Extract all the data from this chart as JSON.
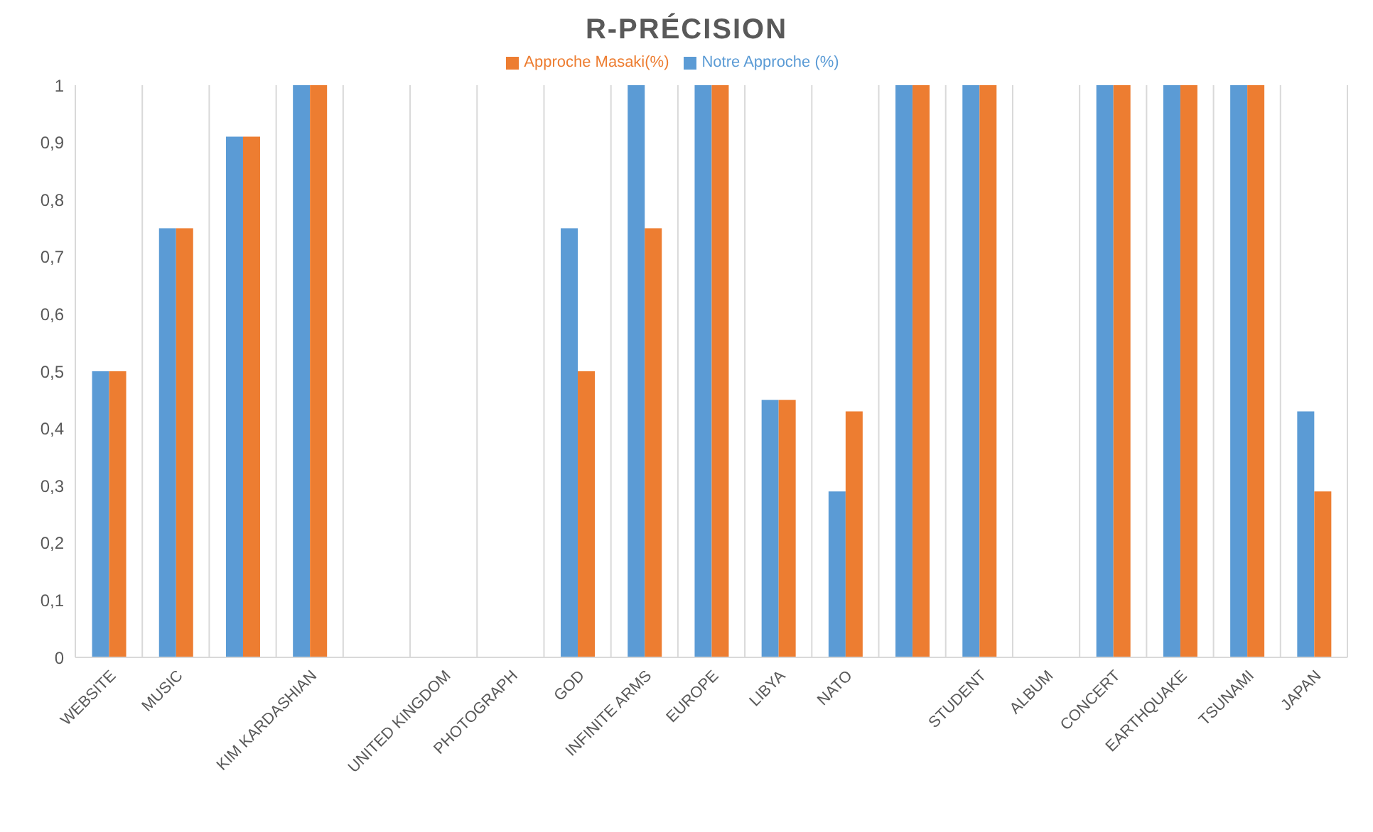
{
  "chart_data": {
    "type": "bar",
    "title": "R-PRÉCISION",
    "categories": [
      "WEBSITE",
      "MUSIC",
      null,
      "KIM KARDASHIAN",
      null,
      "UNITED KINGDOM",
      "PHOTOGRAPH",
      "GOD",
      "INFINITE ARMS",
      "EUROPE",
      "LIBYA",
      "NATO",
      null,
      "STUDENT",
      "ALBUM",
      "CONCERT",
      "EARTHQUAKE",
      "TSUNAMI",
      "JAPAN"
    ],
    "series": [
      {
        "name": "Notre Approche (%)",
        "color": "#5b9bd5",
        "values": [
          0.5,
          0.75,
          0.91,
          1,
          0,
          0,
          0,
          0.75,
          1,
          1,
          0.45,
          0.29,
          1,
          1,
          0,
          1,
          1,
          1,
          0.43
        ]
      },
      {
        "name": "Approche Masaki(%)",
        "color": "#ed7d31",
        "values": [
          0.5,
          0.75,
          0.91,
          1,
          0,
          0,
          0,
          0.5,
          0.75,
          1,
          0.45,
          0.43,
          1,
          1,
          0,
          1,
          1,
          1,
          0.29
        ]
      }
    ],
    "ylim": [
      0,
      1
    ],
    "yticks": [
      {
        "value": 0,
        "label": "0"
      },
      {
        "value": 0.1,
        "label": "0,1"
      },
      {
        "value": 0.2,
        "label": "0,2"
      },
      {
        "value": 0.3,
        "label": "0,3"
      },
      {
        "value": 0.4,
        "label": "0,4"
      },
      {
        "value": 0.5,
        "label": "0,5"
      },
      {
        "value": 0.6,
        "label": "0,6"
      },
      {
        "value": 0.7,
        "label": "0,7"
      },
      {
        "value": 0.8,
        "label": "0,8"
      },
      {
        "value": 0.9,
        "label": "0,9"
      },
      {
        "value": 1,
        "label": "1"
      }
    ],
    "grid": "x",
    "legend": "top"
  }
}
